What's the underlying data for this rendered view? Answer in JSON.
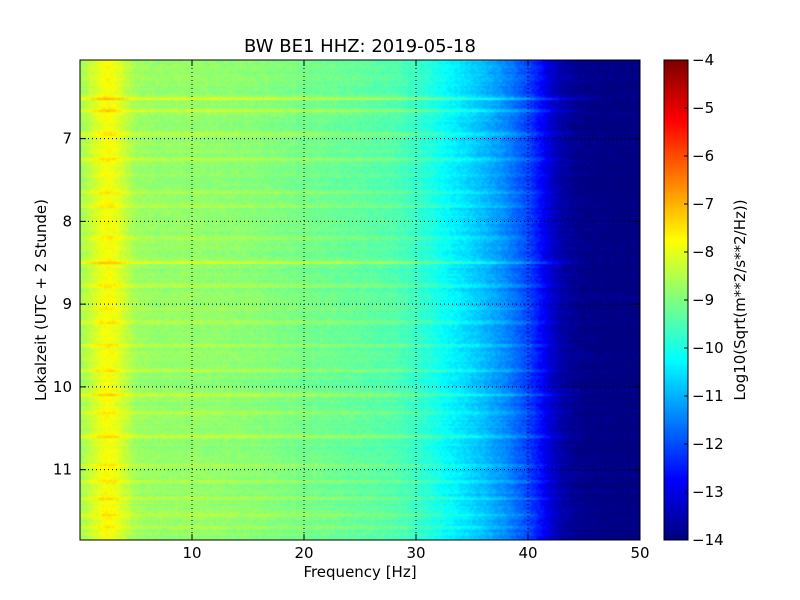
{
  "chart_data": {
    "type": "heatmap",
    "title": "BW BE1 HHZ: 2019-05-18",
    "xlabel": "Frequency [Hz]",
    "ylabel": "Lokalzeit (UTC + 2 Stunde)",
    "xlim": [
      0,
      50
    ],
    "ylim": [
      11.85,
      6.05
    ],
    "y_inverted": true,
    "x_ticks": [
      10,
      20,
      30,
      40,
      50
    ],
    "x_tick_labels": [
      "10",
      "20",
      "30",
      "40",
      "50"
    ],
    "y_ticks": [
      7,
      8,
      9,
      10,
      11
    ],
    "y_tick_labels": [
      "7",
      "8",
      "9",
      "10",
      "11"
    ],
    "grid": true,
    "colormap": "jet",
    "colorbar": {
      "label": "Log10(Sqrt(m**2/s**2/Hz))",
      "range": [
        -14,
        -4
      ],
      "ticks": [
        -4,
        -5,
        -6,
        -7,
        -8,
        -9,
        -10,
        -11,
        -12,
        -13,
        -14
      ],
      "tick_labels": [
        "−4",
        "−5",
        "−6",
        "−7",
        "−8",
        "−9",
        "−10",
        "−11",
        "−12",
        "−13",
        "−14"
      ]
    },
    "frequency_profile": {
      "frequency_hz": [
        0,
        1,
        2,
        2.5,
        3,
        4,
        5,
        7,
        10,
        15,
        20,
        25,
        28,
        30,
        32,
        34,
        36,
        38,
        40,
        41,
        42,
        43,
        44,
        45,
        46,
        48,
        50
      ],
      "log10_amplitude": [
        -8.7,
        -8.3,
        -7.9,
        -7.8,
        -7.9,
        -8.3,
        -8.7,
        -8.8,
        -8.8,
        -8.9,
        -9.1,
        -9.3,
        -9.45,
        -9.7,
        -10.1,
        -10.5,
        -10.9,
        -11.4,
        -12.1,
        -12.6,
        -13.2,
        -13.6,
        -13.8,
        -13.9,
        -13.95,
        -14,
        -14
      ]
    },
    "time_bands": [
      {
        "time": 6.52,
        "delta": 0.8,
        "fmax": 47
      },
      {
        "time": 6.66,
        "delta": 0.8,
        "fmax": 46
      },
      {
        "time": 6.95,
        "delta": 0.5,
        "fmax": 44
      },
      {
        "time": 7.25,
        "delta": 0.6,
        "fmax": 45
      },
      {
        "time": 7.65,
        "delta": 0.5,
        "fmax": 44
      },
      {
        "time": 7.82,
        "delta": 0.4,
        "fmax": 42
      },
      {
        "time": 8.2,
        "delta": 0.4,
        "fmax": 42
      },
      {
        "time": 8.5,
        "delta": 0.8,
        "fmax": 46
      },
      {
        "time": 8.78,
        "delta": 0.6,
        "fmax": 45
      },
      {
        "time": 9.05,
        "delta": 0.5,
        "fmax": 44
      },
      {
        "time": 9.22,
        "delta": 0.4,
        "fmax": 43
      },
      {
        "time": 9.5,
        "delta": 0.6,
        "fmax": 45
      },
      {
        "time": 9.8,
        "delta": 0.5,
        "fmax": 44
      },
      {
        "time": 10.1,
        "delta": 0.7,
        "fmax": 46
      },
      {
        "time": 10.32,
        "delta": 0.5,
        "fmax": 44
      },
      {
        "time": 10.6,
        "delta": 0.6,
        "fmax": 45
      },
      {
        "time": 10.95,
        "delta": 0.5,
        "fmax": 44
      },
      {
        "time": 11.15,
        "delta": 0.5,
        "fmax": 44
      },
      {
        "time": 11.35,
        "delta": 0.6,
        "fmax": 45
      },
      {
        "time": 11.55,
        "delta": 0.5,
        "fmax": 44
      },
      {
        "time": 11.7,
        "delta": 0.4,
        "fmax": 43
      }
    ]
  }
}
